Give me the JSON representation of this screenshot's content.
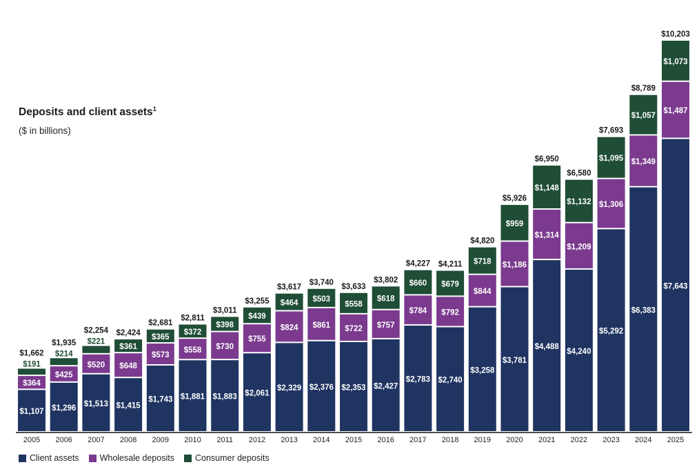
{
  "chart_data": {
    "type": "bar",
    "stacked": true,
    "title": "Deposits and client assets",
    "title_footnote": "1",
    "subtitle": "($ in billions)",
    "categories": [
      "2005",
      "2006",
      "2007",
      "2008",
      "2009",
      "2010",
      "2011",
      "2012",
      "2013",
      "2014",
      "2015",
      "2016",
      "2017",
      "2018",
      "2019",
      "2020",
      "2021",
      "2022",
      "2023",
      "2024",
      "2025"
    ],
    "series": [
      {
        "name": "Client assets",
        "color": "#1f3461",
        "values": [
          1107,
          1296,
          1513,
          1415,
          1743,
          1881,
          1883,
          2061,
          2329,
          2376,
          2353,
          2427,
          2783,
          2740,
          3258,
          3781,
          4488,
          4240,
          5292,
          6383,
          7643
        ]
      },
      {
        "name": "Wholesale deposits",
        "color": "#7b3a8e",
        "values": [
          364,
          425,
          520,
          648,
          573,
          558,
          730,
          755,
          824,
          861,
          722,
          757,
          784,
          792,
          844,
          1186,
          1314,
          1209,
          1306,
          1349,
          1487
        ]
      },
      {
        "name": "Consumer deposits",
        "color": "#1f4d36",
        "values": [
          191,
          214,
          221,
          361,
          365,
          372,
          398,
          439,
          464,
          503,
          558,
          618,
          660,
          679,
          718,
          959,
          1148,
          1132,
          1095,
          1057,
          1073
        ]
      }
    ],
    "totals": [
      1662,
      1935,
      2254,
      2424,
      2681,
      2811,
      3011,
      3255,
      3617,
      3740,
      3633,
      3802,
      4227,
      4211,
      4820,
      5926,
      6950,
      6580,
      7693,
      8789,
      10203
    ],
    "value_prefix": "$",
    "legend_position": "bottom-left",
    "grid": false
  }
}
